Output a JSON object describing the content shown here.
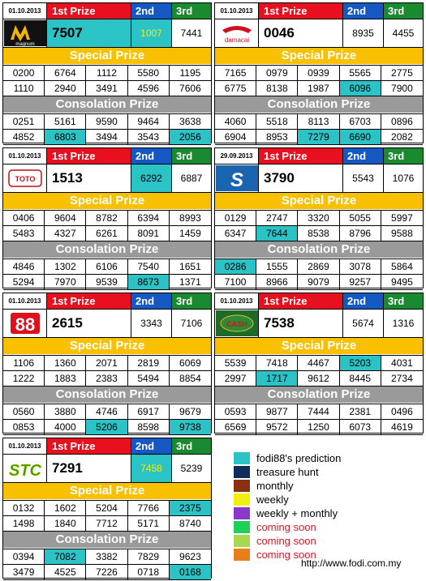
{
  "panels": [
    {
      "id": "magnum",
      "date": "01.10.2013",
      "logo_text": "magnum",
      "first": "7507",
      "second": "1007",
      "third": "7441",
      "first_hl": "cyan",
      "second_hl": "cyan-yellow",
      "special": [
        "0200",
        "6764",
        "1112",
        "5580",
        "1195",
        "1110",
        "2940",
        "3491",
        "4596",
        "7606"
      ],
      "special_hl": [],
      "consol": [
        "0251",
        "5161",
        "9590",
        "9464",
        "3638",
        "4852",
        "6803",
        "3494",
        "3543",
        "2056"
      ],
      "consol_hl": [
        6,
        9
      ]
    },
    {
      "id": "damacai",
      "date": "01.10.2013",
      "logo_text": "damacai",
      "first": "0046",
      "second": "8935",
      "third": "4455",
      "first_hl": "",
      "second_hl": "",
      "special": [
        "7165",
        "0979",
        "0939",
        "5565",
        "2775",
        "6775",
        "8138",
        "1987",
        "6096",
        "7900"
      ],
      "special_hl": [
        8
      ],
      "consol": [
        "4060",
        "5518",
        "8113",
        "6703",
        "0896",
        "6904",
        "8953",
        "7279",
        "6690",
        "2082"
      ],
      "consol_hl": [
        7,
        8
      ]
    },
    {
      "id": "toto",
      "date": "01.10.2013",
      "logo_text": "TOTO",
      "first": "1513",
      "second": "6292",
      "third": "6887",
      "first_hl": "",
      "second_hl": "cyan",
      "special": [
        "0406",
        "9604",
        "8782",
        "6394",
        "8993",
        "5483",
        "4327",
        "6261",
        "8091",
        "1459"
      ],
      "special_hl": [],
      "consol": [
        "4846",
        "1302",
        "6106",
        "7540",
        "1651",
        "5294",
        "7970",
        "9539",
        "8673",
        "1371"
      ],
      "consol_hl": [
        8
      ]
    },
    {
      "id": "sabah",
      "date": "29.09.2013",
      "logo_text": "S",
      "first": "3790",
      "second": "5543",
      "third": "1076",
      "first_hl": "",
      "second_hl": "",
      "special": [
        "0129",
        "2747",
        "3320",
        "5055",
        "5997",
        "6347",
        "7644",
        "8538",
        "8796",
        "9588"
      ],
      "special_hl": [
        6
      ],
      "consol": [
        "0286",
        "1555",
        "2869",
        "3078",
        "5864",
        "7100",
        "8966",
        "9079",
        "9257",
        "9495"
      ],
      "consol_hl": [
        0
      ]
    },
    {
      "id": "88",
      "date": "01.10.2013",
      "logo_text": "88",
      "first": "2615",
      "second": "3343",
      "third": "7106",
      "first_hl": "",
      "second_hl": "",
      "special": [
        "1106",
        "1360",
        "2071",
        "2819",
        "6069",
        "1222",
        "1883",
        "2383",
        "5494",
        "8854"
      ],
      "special_hl": [],
      "consol": [
        "0560",
        "3880",
        "4746",
        "6917",
        "9679",
        "0853",
        "4000",
        "5206",
        "8598",
        "9738"
      ],
      "consol_hl": [
        7,
        9
      ]
    },
    {
      "id": "cashsweep",
      "date": "01.10.2013",
      "logo_text": "CASH",
      "first": "7538",
      "second": "5674",
      "third": "1316",
      "first_hl": "",
      "second_hl": "",
      "special": [
        "5539",
        "7418",
        "4467",
        "5203",
        "4031",
        "2997",
        "1717",
        "9612",
        "8445",
        "2734"
      ],
      "special_hl": [
        3,
        6
      ],
      "consol": [
        "0593",
        "9877",
        "7444",
        "2381",
        "0496",
        "6569",
        "9572",
        "1250",
        "6073",
        "4619"
      ],
      "consol_hl": []
    },
    {
      "id": "stc",
      "date": "01.10.2013",
      "logo_text": "STC",
      "first": "7291",
      "second": "7458",
      "third": "5239",
      "first_hl": "",
      "second_hl": "cyan-yellow",
      "special": [
        "0132",
        "1602",
        "5204",
        "7766",
        "2375",
        "1498",
        "1840",
        "7712",
        "5171",
        "8740"
      ],
      "special_hl": [
        4
      ],
      "consol": [
        "0394",
        "7082",
        "3382",
        "7829",
        "9623",
        "3479",
        "4525",
        "7226",
        "0718",
        "0168"
      ],
      "consol_hl": [
        1,
        9
      ]
    }
  ],
  "labels": {
    "first": "1st Prize",
    "second": "2nd",
    "third": "3rd",
    "special": "Special Prize",
    "consolation": "Consolation Prize"
  },
  "legend": [
    {
      "label": "fodi88's prediction",
      "color": "#2bc3c6",
      "red": false
    },
    {
      "label": "treasure hunt",
      "color": "#102c5a",
      "red": false
    },
    {
      "label": "monthly",
      "color": "#8a3010",
      "red": false
    },
    {
      "label": "weekly",
      "color": "#f2ee10",
      "red": false
    },
    {
      "label": "weekly + monthly",
      "color": "#8a3ac8",
      "red": false
    },
    {
      "label": "coming soon",
      "color": "#1fcf5a",
      "red": true
    },
    {
      "label": "coming soon",
      "color": "#a8d850",
      "red": true
    },
    {
      "label": "coming soon",
      "color": "#e8801a",
      "red": true
    }
  ],
  "url": "http://www.fodi.com.my"
}
